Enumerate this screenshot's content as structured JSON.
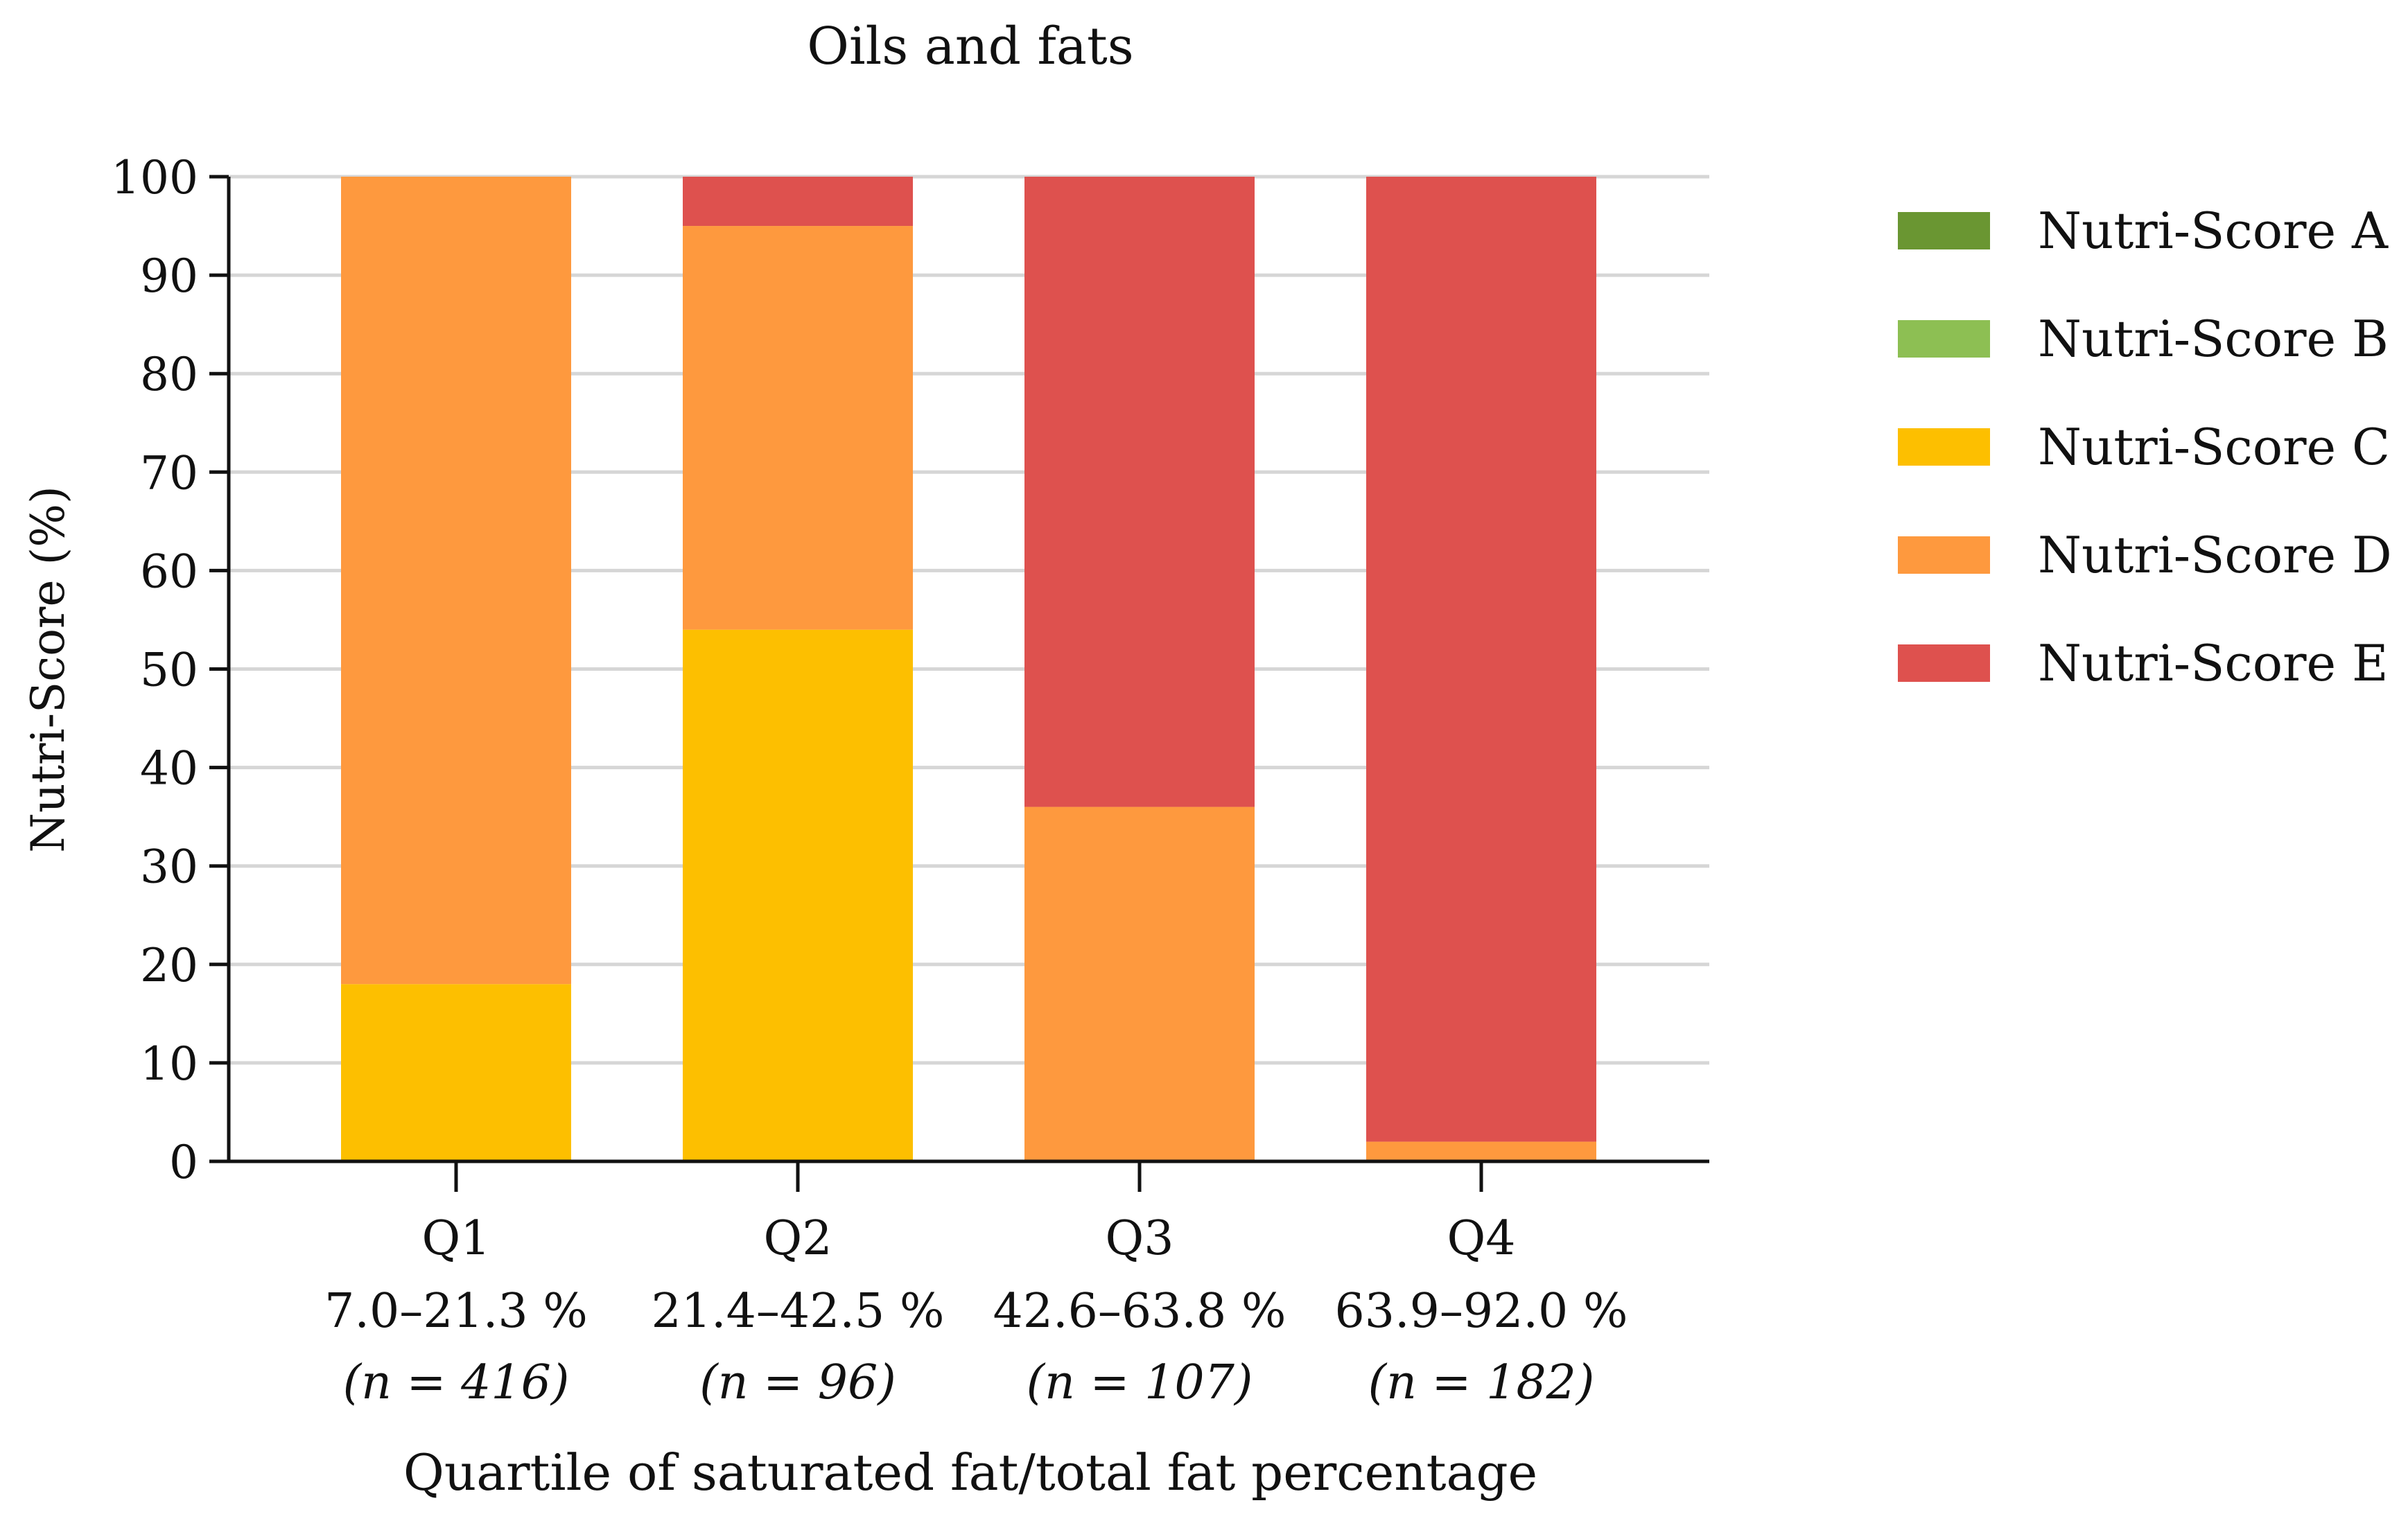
{
  "chart_data": {
    "type": "bar",
    "stacked": true,
    "title": "Oils and fats",
    "xlabel": "Quartile of saturated fat/total fat percentage",
    "ylabel": "Nutri-Score (%)",
    "ylim": [
      0,
      100
    ],
    "yticks": [
      0,
      10,
      20,
      30,
      40,
      50,
      60,
      70,
      80,
      90,
      100
    ],
    "grid": true,
    "legend_position": "right",
    "categories": [
      "Q1",
      "Q2",
      "Q3",
      "Q4"
    ],
    "category_ranges": [
      "7.0–21.3 %",
      "21.4–42.5 %",
      "42.6–63.8 %",
      "63.9–92.0 %"
    ],
    "category_n_prefix": "(n = ",
    "category_n_values": [
      "416)",
      "96)",
      "107)",
      "182)"
    ],
    "category_n_labels": [
      "(n = 416)",
      "(n = 96)",
      "(n = 107)",
      "(n = 182)"
    ],
    "series": [
      {
        "name": "Nutri-Score A",
        "color": "#6a9632",
        "values": [
          0,
          0,
          0,
          0
        ]
      },
      {
        "name": "Nutri-Score B",
        "color": "#8dbf53",
        "values": [
          0,
          0,
          0,
          0
        ]
      },
      {
        "name": "Nutri-Score C",
        "color": "#fdbf00",
        "values": [
          18,
          54,
          0,
          0
        ]
      },
      {
        "name": "Nutri-Score D",
        "color": "#fe993e",
        "values": [
          82,
          41,
          36,
          2
        ]
      },
      {
        "name": "Nutri-Score E",
        "color": "#de514e",
        "values": [
          0,
          5,
          64,
          98
        ]
      }
    ]
  }
}
